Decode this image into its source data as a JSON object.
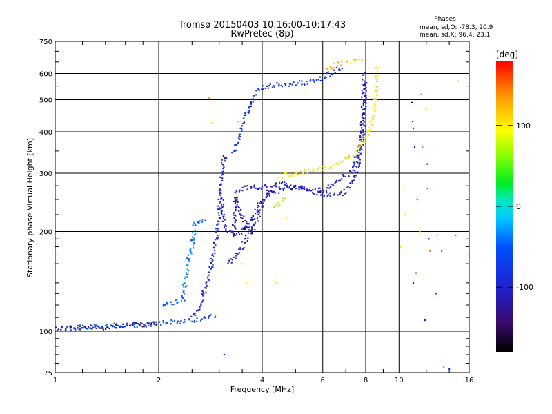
{
  "chart_data": {
    "type": "scatter",
    "title": "Tromsø 20150403 10:16:00-10:17:43",
    "subtitle": "RwPretec (8p)",
    "xlabel": "Frequency [MHz]",
    "ylabel": "Stationary phase Virtual Height [km]",
    "x_scale": "log",
    "y_scale": "log",
    "xlim": [
      1,
      16
    ],
    "ylim": [
      75,
      750
    ],
    "x_ticks": [
      1,
      2,
      4,
      6,
      8,
      10,
      16
    ],
    "y_ticks": [
      75,
      100,
      200,
      300,
      400,
      500,
      600,
      750
    ],
    "grid": true,
    "phase_stats": {
      "title": "Phases",
      "line1": "mean, sd,O: -78.3, 20.9",
      "line2": "mean, sd,X:  96.4, 23.1"
    },
    "colorbar": {
      "label": "[deg]",
      "ticks": [
        "100",
        "0",
        "-100"
      ],
      "tick_values": [
        100,
        0,
        -100
      ],
      "range": [
        -180,
        180
      ]
    },
    "traces": [
      {
        "phase": -140,
        "points": [
          [
            1.0,
            102
          ],
          [
            1.2,
            102
          ],
          [
            1.4,
            103
          ],
          [
            1.6,
            104
          ],
          [
            1.8,
            105
          ],
          [
            2.0,
            105
          ]
        ]
      },
      {
        "phase": -60,
        "points": [
          [
            1.05,
            102
          ],
          [
            1.25,
            103
          ],
          [
            1.45,
            104
          ],
          [
            1.7,
            104
          ],
          [
            1.95,
            105
          ],
          [
            2.2,
            107
          ],
          [
            2.5,
            108
          ],
          [
            2.8,
            110
          ],
          [
            2.95,
            112
          ]
        ]
      },
      {
        "phase": -40,
        "points": [
          [
            2.05,
            120
          ],
          [
            2.2,
            122
          ],
          [
            2.35,
            125
          ],
          [
            2.45,
            170
          ],
          [
            2.5,
            180
          ],
          [
            2.55,
            210
          ],
          [
            2.65,
            215
          ],
          [
            2.75,
            216
          ]
        ]
      },
      {
        "phase": -90,
        "points": [
          [
            2.5,
            110
          ],
          [
            2.65,
            120
          ],
          [
            2.8,
            145
          ],
          [
            2.9,
            175
          ],
          [
            3.0,
            230
          ],
          [
            3.05,
            300
          ],
          [
            3.1,
            340
          ],
          [
            3.15,
            330
          ]
        ]
      },
      {
        "phase": -110,
        "points": [
          [
            3.05,
            250
          ],
          [
            3.1,
            210
          ],
          [
            3.2,
            200
          ],
          [
            3.35,
            195
          ],
          [
            3.5,
            200
          ],
          [
            3.7,
            215
          ],
          [
            3.9,
            240
          ],
          [
            4.2,
            260
          ],
          [
            4.6,
            270
          ],
          [
            5.0,
            272
          ],
          [
            5.5,
            270
          ],
          [
            6.0,
            265
          ],
          [
            6.6,
            285
          ],
          [
            7.2,
            300
          ],
          [
            7.6,
            340
          ],
          [
            7.8,
            400
          ],
          [
            7.9,
            600
          ]
        ]
      },
      {
        "phase": -100,
        "points": [
          [
            3.4,
            268
          ],
          [
            3.8,
            272
          ],
          [
            4.2,
            275
          ],
          [
            4.7,
            278
          ],
          [
            5.2,
            270
          ],
          [
            5.8,
            262
          ],
          [
            6.3,
            258
          ],
          [
            6.8,
            260
          ],
          [
            7.3,
            280
          ],
          [
            7.7,
            330
          ],
          [
            7.9,
            420
          ],
          [
            8.0,
            560
          ]
        ]
      },
      {
        "phase": -110,
        "points": [
          [
            3.2,
            160
          ],
          [
            3.5,
            180
          ],
          [
            3.8,
            210
          ],
          [
            4.0,
            240
          ],
          [
            4.2,
            270
          ]
        ]
      },
      {
        "phase": -120,
        "points": [
          [
            3.3,
            195
          ],
          [
            3.35,
            260
          ],
          [
            3.4,
            245
          ],
          [
            3.5,
            220
          ],
          [
            3.6,
            205
          ],
          [
            3.8,
            200
          ]
        ]
      },
      {
        "phase": -80,
        "points": [
          [
            3.3,
            345
          ],
          [
            3.5,
            420
          ],
          [
            3.7,
            490
          ],
          [
            3.9,
            540
          ],
          [
            4.1,
            550
          ],
          [
            4.5,
            555
          ],
          [
            5.0,
            560
          ],
          [
            5.5,
            565
          ],
          [
            6.0,
            580
          ],
          [
            6.5,
            615
          ],
          [
            6.9,
            635
          ]
        ]
      },
      {
        "phase": 100,
        "points": [
          [
            4.5,
            295
          ],
          [
            5.0,
            300
          ],
          [
            5.5,
            305
          ],
          [
            6.0,
            310
          ],
          [
            6.5,
            315
          ],
          [
            7.0,
            330
          ],
          [
            7.5,
            350
          ],
          [
            8.0,
            380
          ],
          [
            8.3,
            420
          ],
          [
            8.5,
            480
          ],
          [
            8.6,
            560
          ],
          [
            8.65,
            630
          ]
        ]
      },
      {
        "phase": 70,
        "points": [
          [
            4.3,
            235
          ],
          [
            4.5,
            245
          ],
          [
            4.7,
            250
          ]
        ]
      },
      {
        "phase": 110,
        "points": [
          [
            6.2,
            620
          ],
          [
            6.6,
            640
          ],
          [
            7.0,
            650
          ],
          [
            7.5,
            655
          ],
          [
            7.9,
            650
          ]
        ]
      }
    ],
    "scatter": [
      {
        "x": 2.8,
        "y": 505,
        "phase": 140
      },
      {
        "x": 2.85,
        "y": 425,
        "phase": 100
      },
      {
        "x": 3.1,
        "y": 85,
        "phase": -110
      },
      {
        "x": 3.4,
        "y": 430,
        "phase": 60
      },
      {
        "x": 3.5,
        "y": 160,
        "phase": 100
      },
      {
        "x": 3.6,
        "y": 140,
        "phase": 95
      },
      {
        "x": 4.4,
        "y": 140,
        "phase": 70
      },
      {
        "x": 4.7,
        "y": 220,
        "phase": 95
      },
      {
        "x": 10.1,
        "y": 180,
        "phase": 110
      },
      {
        "x": 10.3,
        "y": 270,
        "phase": 95
      },
      {
        "x": 10.4,
        "y": 225,
        "phase": 80
      },
      {
        "x": 10.9,
        "y": 490,
        "phase": -120
      },
      {
        "x": 10.95,
        "y": 430,
        "phase": -100
      },
      {
        "x": 11.0,
        "y": 410,
        "phase": -95
      },
      {
        "x": 11.1,
        "y": 360,
        "phase": -110
      },
      {
        "x": 11.0,
        "y": 140,
        "phase": -130
      },
      {
        "x": 11.2,
        "y": 150,
        "phase": 160
      },
      {
        "x": 11.3,
        "y": 250,
        "phase": 160
      },
      {
        "x": 11.5,
        "y": 200,
        "phase": 110
      },
      {
        "x": 11.6,
        "y": 520,
        "phase": 50
      },
      {
        "x": 11.7,
        "y": 360,
        "phase": 40
      },
      {
        "x": 12.0,
        "y": 470,
        "phase": 110
      },
      {
        "x": 12.1,
        "y": 320,
        "phase": -120
      },
      {
        "x": 12.1,
        "y": 270,
        "phase": 160
      },
      {
        "x": 12.2,
        "y": 190,
        "phase": -130
      },
      {
        "x": 12.3,
        "y": 175,
        "phase": 150
      },
      {
        "x": 12.8,
        "y": 130,
        "phase": -100
      },
      {
        "x": 12.9,
        "y": 195,
        "phase": 60
      },
      {
        "x": 13.3,
        "y": 175,
        "phase": 170
      },
      {
        "x": 13.5,
        "y": 78,
        "phase": 140
      },
      {
        "x": 14.0,
        "y": 77,
        "phase": -60
      },
      {
        "x": 14.6,
        "y": 195,
        "phase": -30
      },
      {
        "x": 14.8,
        "y": 570,
        "phase": 110
      },
      {
        "x": 11.9,
        "y": 108,
        "phase": -100
      }
    ]
  }
}
